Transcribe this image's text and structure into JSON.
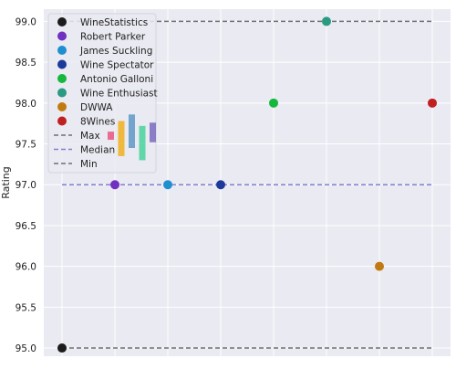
{
  "chart_data": {
    "type": "scatter",
    "title": "",
    "xlabel": "",
    "ylabel": "Rating",
    "ylim": [
      94.9,
      99.15
    ],
    "y_ticks": [
      95.0,
      95.5,
      96.0,
      96.5,
      97.0,
      97.5,
      98.0,
      98.5,
      99.0
    ],
    "x_tick_count": 8,
    "grid": true,
    "legend_position": "top-left",
    "series": [
      {
        "name": "WineStatistics",
        "color": "#1c1c1c",
        "x": 0,
        "y": 95.0
      },
      {
        "name": "Robert Parker",
        "color": "#7030c0",
        "x": 1,
        "y": 97.0
      },
      {
        "name": "James Suckling",
        "color": "#1f8fd0",
        "x": 2,
        "y": 97.0
      },
      {
        "name": "Wine Spectator",
        "color": "#1c3a9a",
        "x": 3,
        "y": 97.0
      },
      {
        "name": "Antonio Galloni",
        "color": "#14b83c",
        "x": 4,
        "y": 98.0
      },
      {
        "name": "Wine Enthusiast",
        "color": "#2a9a80",
        "x": 5,
        "y": 99.0
      },
      {
        "name": "DWWA",
        "color": "#c07a10",
        "x": 6,
        "y": 96.0
      },
      {
        "name": "8Wines",
        "color": "#c02020",
        "x": 7,
        "y": 98.0
      }
    ],
    "reference_lines": [
      {
        "name": "Max",
        "y": 99.0,
        "x_from": 0,
        "x_to": 7,
        "color": "#707070",
        "style": "dashed"
      },
      {
        "name": "Median",
        "y": 97.0,
        "x_from": 0,
        "x_to": 7,
        "color": "#8080d0",
        "style": "dashed"
      },
      {
        "name": "Min",
        "y": 95.0,
        "x_from": 0,
        "x_to": 7,
        "color": "#707070",
        "style": "dashed"
      }
    ],
    "legend_decoration_bars": [
      {
        "color": "#e84070",
        "from": 97.55,
        "to": 97.65
      },
      {
        "color": "#f0a800",
        "from": 97.35,
        "to": 97.78
      },
      {
        "color": "#4a8cc0",
        "from": 97.45,
        "to": 97.86
      },
      {
        "color": "#30d090",
        "from": 97.3,
        "to": 97.72
      },
      {
        "color": "#6a5ab8",
        "from": 97.52,
        "to": 97.76
      }
    ]
  }
}
